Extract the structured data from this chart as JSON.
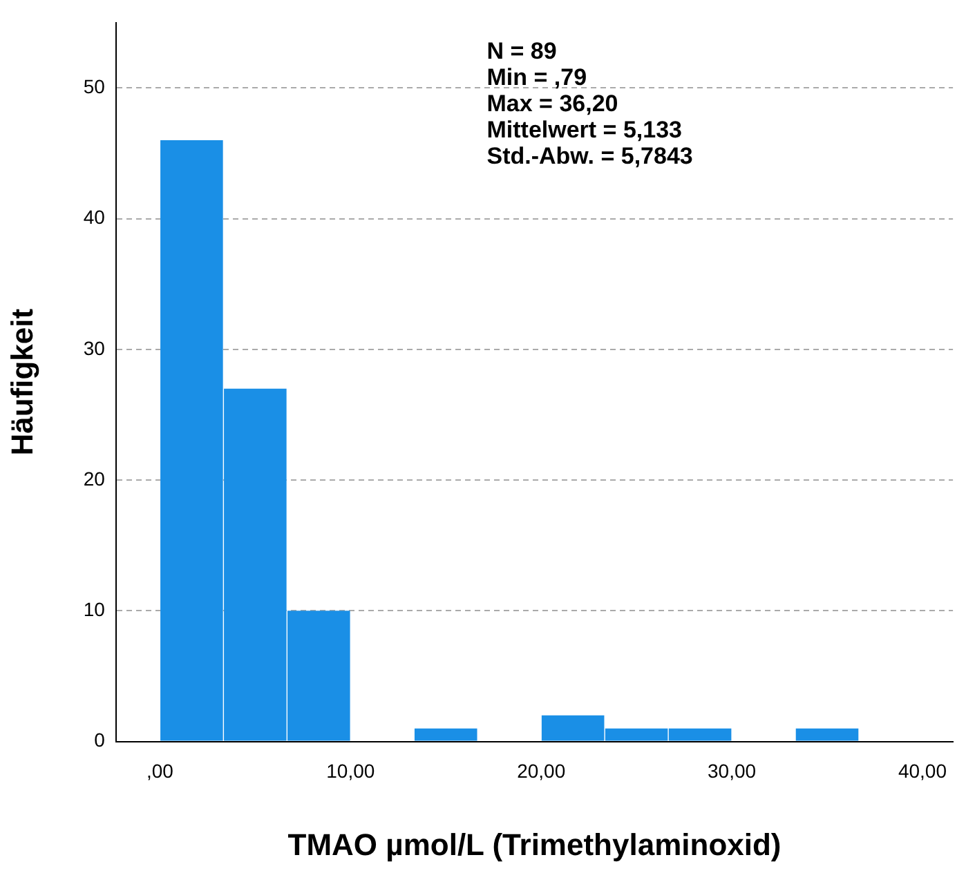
{
  "chart_data": {
    "type": "histogram",
    "xlabel": "TMAO µmol/L (Trimethylaminoxid)",
    "ylabel": "Häufigkeit",
    "bins": [
      0,
      3.333,
      6.667,
      10,
      13.333,
      16.667,
      20,
      23.333,
      26.667,
      30,
      33.333,
      36.667
    ],
    "values": [
      46,
      27,
      10,
      0,
      1,
      0,
      2,
      1,
      1,
      0,
      1
    ],
    "color": "#1a8fe6",
    "xlim": [
      -2.3,
      41.6
    ],
    "ylim": [
      0,
      55
    ],
    "xticks": [
      {
        "value": 0,
        "label": ",00"
      },
      {
        "value": 10,
        "label": "10,00"
      },
      {
        "value": 20,
        "label": "20,00"
      },
      {
        "value": 30,
        "label": "30,00"
      },
      {
        "value": 40,
        "label": "40,00"
      }
    ],
    "yticks": [
      0,
      10,
      20,
      30,
      40,
      50
    ],
    "grid": "y",
    "annotations": [
      "N = 89",
      "Min = ,79",
      "Max = 36,20",
      "Mittelwert = 5,133",
      "Std.-Abw. = 5,7843"
    ]
  }
}
